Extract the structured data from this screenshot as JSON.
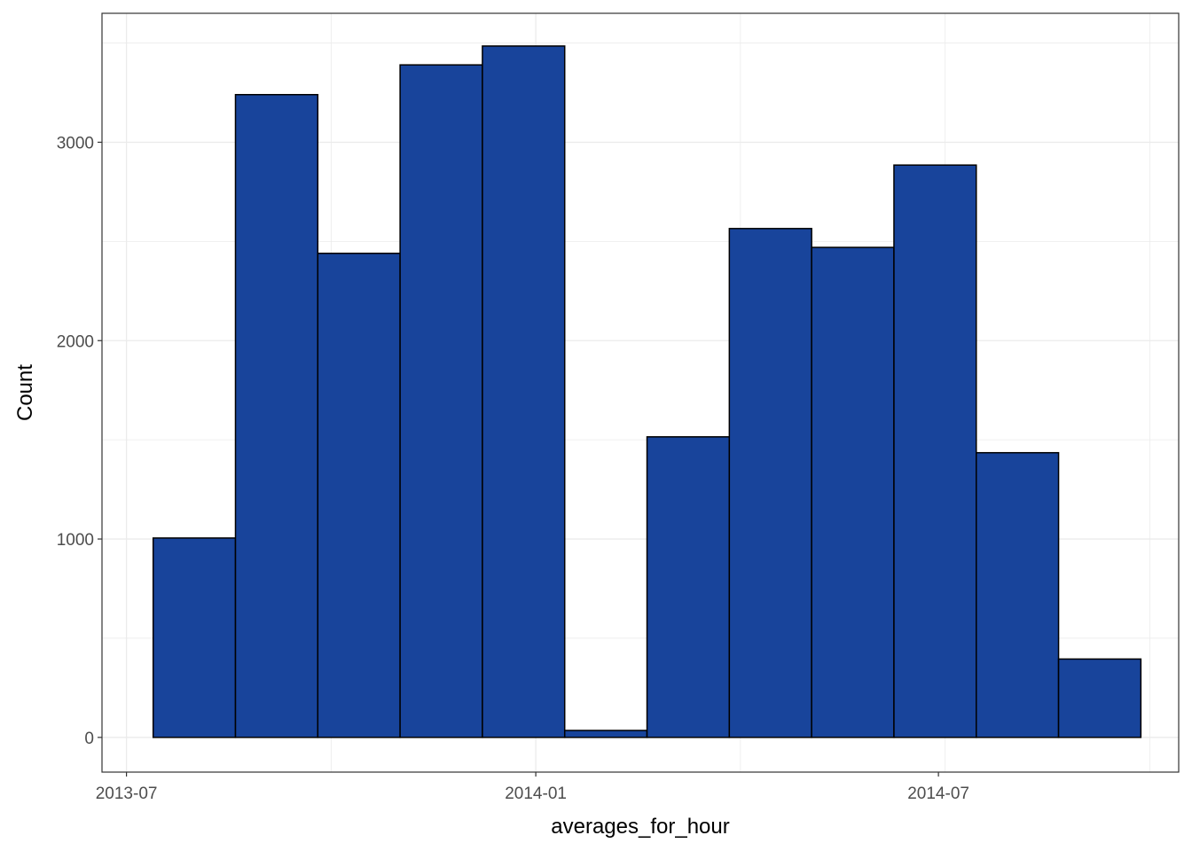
{
  "chart_data": {
    "type": "bar",
    "subtype": "histogram",
    "xlabel": "averages_for_hour",
    "ylabel": "Count",
    "x_ticks": [
      "2013-07",
      "2014-01",
      "2014-07"
    ],
    "y_ticks": [
      0,
      1000,
      2000,
      3000
    ],
    "xlim": [
      "2013-06-20",
      "2014-10-17"
    ],
    "ylim": [
      -175,
      3650
    ],
    "bins": [
      {
        "start": "2013-07-13",
        "end": "2013-08-19",
        "count": 1005
      },
      {
        "start": "2013-08-19",
        "end": "2013-09-25",
        "count": 3240
      },
      {
        "start": "2013-09-25",
        "end": "2013-11-01",
        "count": 2440
      },
      {
        "start": "2013-11-01",
        "end": "2013-12-08",
        "count": 3390
      },
      {
        "start": "2013-12-08",
        "end": "2014-01-14",
        "count": 3485
      },
      {
        "start": "2014-01-14",
        "end": "2014-02-20",
        "count": 35
      },
      {
        "start": "2014-02-20",
        "end": "2014-03-29",
        "count": 1515
      },
      {
        "start": "2014-03-29",
        "end": "2014-05-05",
        "count": 2565
      },
      {
        "start": "2014-05-05",
        "end": "2014-06-11",
        "count": 2470
      },
      {
        "start": "2014-06-11",
        "end": "2014-07-18",
        "count": 2885
      },
      {
        "start": "2014-07-18",
        "end": "2014-08-24",
        "count": 1435
      },
      {
        "start": "2014-08-24",
        "end": "2014-09-30",
        "count": 395
      }
    ],
    "fill_color": "#18449b",
    "border_color": "#000000",
    "grid": true,
    "legend": "none"
  }
}
